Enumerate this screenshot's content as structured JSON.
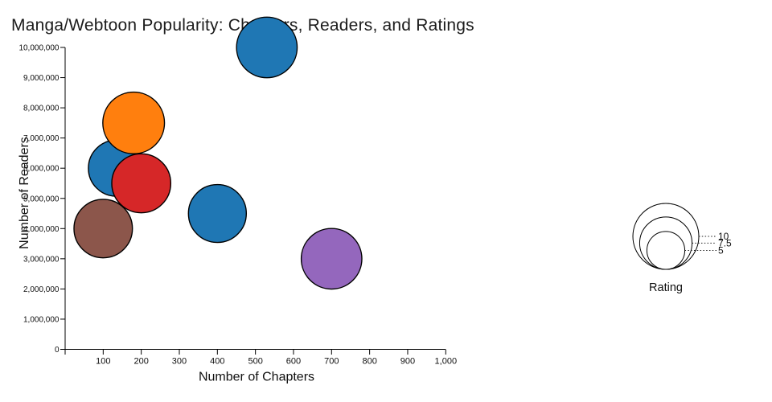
{
  "chart_data": {
    "type": "scatter",
    "title": "Manga/Webtoon Popularity: Chapters, Readers, and Ratings",
    "xlabel": "Number of Chapters",
    "ylabel": "Number of Readers",
    "xlim": [
      0,
      1000
    ],
    "ylim": [
      0,
      10000000
    ],
    "x_ticks": [
      100,
      200,
      300,
      400,
      500,
      600,
      700,
      800,
      900,
      1000
    ],
    "y_ticks": [
      0,
      1000000,
      2000000,
      3000000,
      4000000,
      5000000,
      6000000,
      7000000,
      8000000,
      9000000,
      10000000
    ],
    "grid": false,
    "points": [
      {
        "chapters": 135,
        "readers": 6000000,
        "rating": 8.2,
        "color": "#1f77b4"
      },
      {
        "chapters": 180,
        "readers": 7500000,
        "rating": 9.2,
        "color": "#ff7f0e"
      },
      {
        "chapters": 200,
        "readers": 5500000,
        "rating": 8.7,
        "color": "#d62728"
      },
      {
        "chapters": 100,
        "readers": 4000000,
        "rating": 8.6,
        "color": "#8c564b"
      },
      {
        "chapters": 530,
        "readers": 10000000,
        "rating": 9.0,
        "color": "#1f77b4"
      },
      {
        "chapters": 400,
        "readers": 4500000,
        "rating": 8.5,
        "color": "#1f77b4"
      },
      {
        "chapters": 700,
        "readers": 3000000,
        "rating": 9.0,
        "color": "#9467bd"
      }
    ],
    "legend": {
      "title": "Rating",
      "position": "right",
      "values": [
        10,
        7.5,
        5
      ]
    }
  }
}
